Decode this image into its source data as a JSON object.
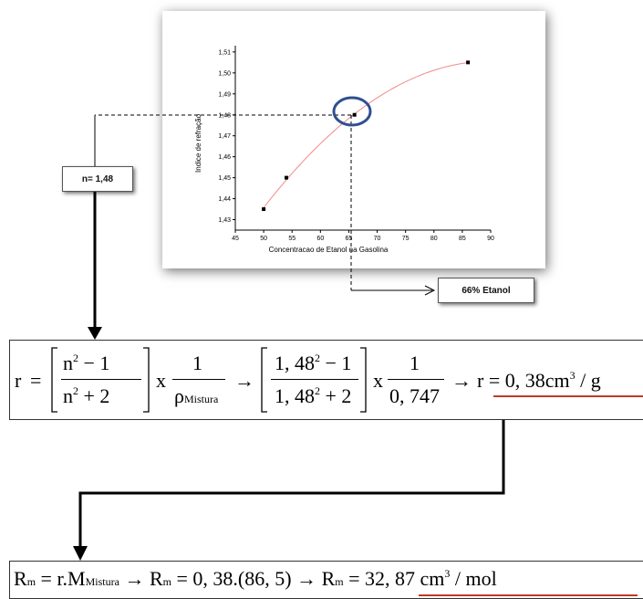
{
  "chart_data": {
    "type": "scatter",
    "title": "",
    "xlabel": "Concentracao de Etanol na Gasolina",
    "ylabel": "Indice de refração",
    "xlim": [
      45,
      90
    ],
    "ylim": [
      1.425,
      1.513
    ],
    "x_ticks": [
      "45",
      "50",
      "55",
      "60",
      "65",
      "70",
      "75",
      "80",
      "85",
      "90"
    ],
    "y_ticks": [
      "1,43",
      "1,44",
      "1,45",
      "1,46",
      "1,47",
      "1,48",
      "1,49",
      "1,50",
      "1,51"
    ],
    "points": [
      {
        "x": 50,
        "y": 1.435
      },
      {
        "x": 54,
        "y": 1.45
      },
      {
        "x": 66,
        "y": 1.48
      },
      {
        "x": 86,
        "y": 1.505
      }
    ],
    "fit_curve": {
      "color": "#f08a8a"
    },
    "highlight": {
      "x": 66,
      "y": 1.48,
      "color": "#2f4f8f"
    }
  },
  "annotations": {
    "n_value_label": "n= 1,48",
    "etanol_label": "66% Etanol"
  },
  "formula1": {
    "r": "r",
    "eq": "=",
    "n2m1": "n",
    "n2m1_sup": "2",
    "n2m1_tail": " − 1",
    "n2p2": "n",
    "n2p2_sup": "2",
    "n2p2_tail": " + 2",
    "times1": "x",
    "one_a": "1",
    "rho": "ρ",
    "rho_sub": "Mistura",
    "arrow1": "→",
    "num_val": "1, 48",
    "num_sup": "2",
    "num_tail": " − 1",
    "den_val": "1, 48",
    "den_sup": "2",
    "den_tail": " + 2",
    "times2": "x",
    "one_b": "1",
    "density": "0, 747",
    "arrow2": "→",
    "result": "r = 0, 38cm",
    "result_sup": "3",
    "result_tail": " / g"
  },
  "formula2": {
    "R": "R",
    "m_sub": "m",
    "part1": " = r.M",
    "mistura_sub": "Mistura",
    "part2": " → R",
    "m_sub2": "m",
    "part3": " = 0, 38.(86, 5) → ",
    "R2": "R",
    "m_sub3": "m",
    "part4": " = 32, 87 cm",
    "cm_sup": "3",
    "part5": " / mol"
  },
  "colors": {
    "arrow": "#000000",
    "underline": "#c0392b",
    "curve": "#f08a8a",
    "circle": "#2f4f8f"
  }
}
